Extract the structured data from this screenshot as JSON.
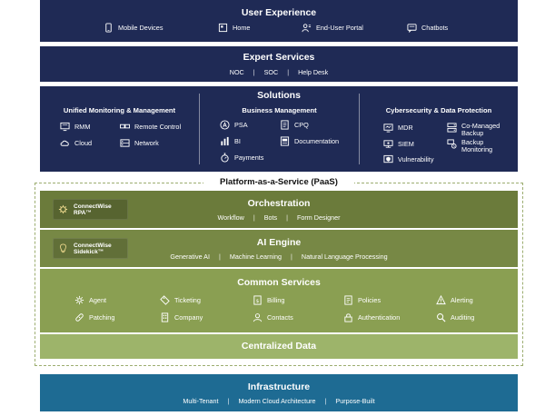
{
  "user_experience": {
    "title": "User Experience",
    "items": [
      {
        "label": "Mobile Devices",
        "icon": "mobile-device-icon"
      },
      {
        "label": "Home",
        "icon": "home-icon"
      },
      {
        "label": "End-User Portal",
        "icon": "user-portal-icon"
      },
      {
        "label": "Chatbots",
        "icon": "chatbot-icon"
      }
    ]
  },
  "expert_services": {
    "title": "Expert Services",
    "items": [
      "NOC",
      "SOC",
      "Help Desk"
    ]
  },
  "solutions": {
    "title": "Solutions",
    "unified": {
      "title": "Unified Monitoring & Management",
      "items": [
        {
          "label": "RMM",
          "icon": "rmm-icon"
        },
        {
          "label": "Remote Control",
          "icon": "remote-control-icon"
        },
        {
          "label": "Cloud",
          "icon": "cloud-icon"
        },
        {
          "label": "Network",
          "icon": "network-icon"
        }
      ]
    },
    "business": {
      "title": "Business Management",
      "items": [
        {
          "label": "PSA",
          "icon": "psa-icon"
        },
        {
          "label": "CPQ",
          "icon": "cpq-icon"
        },
        {
          "label": "BI",
          "icon": "bi-chart-icon"
        },
        {
          "label": "Documentation",
          "icon": "documentation-icon"
        },
        {
          "label": "Payments",
          "icon": "payments-icon"
        }
      ]
    },
    "security": {
      "title": "Cybersecurity & Data Protection",
      "items": [
        {
          "label": "MDR",
          "icon": "mdr-icon"
        },
        {
          "label": "Co-Managed",
          "label2": "Backup",
          "icon": "backup-icon"
        },
        {
          "label": "SIEM",
          "icon": "siem-icon"
        },
        {
          "label": "Backup",
          "label2": "Monitoring",
          "icon": "backup-monitoring-icon"
        },
        {
          "label": "Vulnerability",
          "icon": "vulnerability-icon"
        }
      ]
    }
  },
  "paas": {
    "label": "Platform-as-a-Service (PaaS)"
  },
  "orchestration": {
    "title": "Orchestration",
    "items": [
      "Workflow",
      "Bots",
      "Form Designer"
    ],
    "badge": {
      "line1": "ConnectWise",
      "line2": "RPA™",
      "icon": "rpa-icon"
    }
  },
  "ai_engine": {
    "title": "AI Engine",
    "items": [
      "Generative AI",
      "Machine Learning",
      "Natural Language Processing"
    ],
    "badge": {
      "line1": "ConnectWise",
      "line2": "Sidekick™",
      "icon": "sidekick-icon"
    }
  },
  "common_services": {
    "title": "Common Services",
    "items": [
      {
        "label": "Agent",
        "icon": "agent-icon"
      },
      {
        "label": "Ticketing",
        "icon": "ticketing-icon"
      },
      {
        "label": "Billing",
        "icon": "billing-icon"
      },
      {
        "label": "Policies",
        "icon": "policies-icon"
      },
      {
        "label": "Alerting",
        "icon": "alerting-icon"
      },
      {
        "label": "Patching",
        "icon": "patching-icon"
      },
      {
        "label": "Company",
        "icon": "company-icon"
      },
      {
        "label": "Contacts",
        "icon": "contacts-icon"
      },
      {
        "label": "Authentication",
        "icon": "authentication-icon"
      },
      {
        "label": "Auditing",
        "icon": "auditing-icon"
      }
    ]
  },
  "centralized_data": {
    "title": "Centralized Data"
  },
  "infrastructure": {
    "title": "Infrastructure",
    "items": [
      "Multi-Tenant",
      "Modern Cloud Architecture",
      "Purpose-Built"
    ]
  },
  "colors": {
    "navy": "#1f2a55",
    "orchestration": "#6b7b3b",
    "ai_engine": "#778845",
    "common_services": "#8a9f52",
    "centralized_data": "#9db46a",
    "infrastructure": "#1e6b93",
    "paas_border": "#9cad70"
  }
}
